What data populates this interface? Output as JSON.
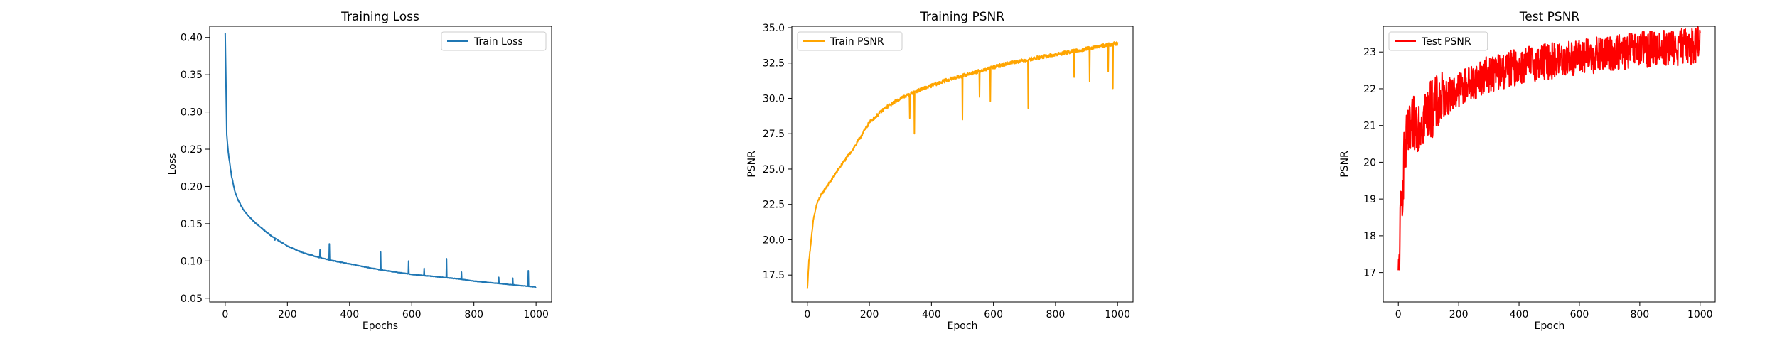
{
  "chart_data": [
    {
      "type": "line",
      "title": "Training Loss",
      "xlabel": "Epochs",
      "ylabel": "Loss",
      "xlim": [
        -50,
        1050
      ],
      "ylim": [
        0.045,
        0.415
      ],
      "xticks": [
        0,
        200,
        400,
        600,
        800,
        1000
      ],
      "yticks": [
        0.05,
        0.1,
        0.15,
        0.2,
        0.25,
        0.3,
        0.35,
        0.4
      ],
      "ytick_labels": [
        "0.05",
        "0.10",
        "0.15",
        "0.20",
        "0.25",
        "0.30",
        "0.35",
        "0.40"
      ],
      "grid": false,
      "legend_position": "top-right",
      "series": [
        {
          "name": "Train Loss",
          "color": "#1f77b4",
          "x": [
            0,
            5,
            10,
            20,
            30,
            40,
            50,
            60,
            80,
            100,
            120,
            150,
            200,
            250,
            300,
            350,
            400,
            450,
            500,
            550,
            600,
            650,
            700,
            750,
            800,
            850,
            900,
            950,
            1000
          ],
          "y": [
            0.405,
            0.27,
            0.245,
            0.215,
            0.195,
            0.183,
            0.175,
            0.168,
            0.158,
            0.15,
            0.143,
            0.133,
            0.12,
            0.111,
            0.105,
            0.1,
            0.096,
            0.092,
            0.088,
            0.085,
            0.082,
            0.08,
            0.078,
            0.076,
            0.073,
            0.071,
            0.069,
            0.067,
            0.065
          ],
          "spikes": [
            [
              160,
              0.128
            ],
            [
              305,
              0.115
            ],
            [
              335,
              0.123
            ],
            [
              500,
              0.112
            ],
            [
              590,
              0.1
            ],
            [
              640,
              0.09
            ],
            [
              712,
              0.103
            ],
            [
              760,
              0.085
            ],
            [
              880,
              0.078
            ],
            [
              925,
              0.077
            ],
            [
              975,
              0.087
            ]
          ]
        }
      ]
    },
    {
      "type": "line",
      "title": "Training PSNR",
      "xlabel": "Epoch",
      "ylabel": "PSNR",
      "xlim": [
        -50,
        1050
      ],
      "ylim": [
        15.6,
        35.1
      ],
      "xticks": [
        0,
        200,
        400,
        600,
        800,
        1000
      ],
      "yticks": [
        17.5,
        20.0,
        22.5,
        25.0,
        27.5,
        30.0,
        32.5,
        35.0
      ],
      "ytick_labels": [
        "17.5",
        "20.0",
        "22.5",
        "25.0",
        "27.5",
        "30.0",
        "32.5",
        "35.0"
      ],
      "grid": false,
      "legend_position": "top-left",
      "series": [
        {
          "name": "Train PSNR",
          "color": "#ffa500",
          "x": [
            0,
            5,
            10,
            20,
            30,
            40,
            60,
            80,
            100,
            150,
            200,
            250,
            300,
            350,
            400,
            450,
            500,
            550,
            600,
            650,
            700,
            750,
            800,
            850,
            900,
            950,
            1000
          ],
          "y": [
            16.5,
            18.5,
            19.5,
            21.5,
            22.5,
            23.0,
            23.7,
            24.3,
            25.0,
            26.5,
            28.3,
            29.3,
            30.0,
            30.5,
            30.9,
            31.3,
            31.6,
            31.9,
            32.2,
            32.5,
            32.7,
            32.9,
            33.1,
            33.3,
            33.5,
            33.7,
            33.9
          ],
          "spikes": [
            [
              330,
              28.6
            ],
            [
              345,
              27.5
            ],
            [
              500,
              28.5
            ],
            [
              555,
              30.1
            ],
            [
              590,
              29.8
            ],
            [
              712,
              29.3
            ],
            [
              860,
              31.5
            ],
            [
              910,
              31.2
            ],
            [
              970,
              31.9
            ],
            [
              985,
              30.7
            ]
          ]
        }
      ]
    },
    {
      "type": "line",
      "title": "Test PSNR",
      "xlabel": "Epoch",
      "ylabel": "PSNR",
      "xlim": [
        -50,
        1050
      ],
      "ylim": [
        16.2,
        23.7
      ],
      "xticks": [
        0,
        200,
        400,
        600,
        800,
        1000
      ],
      "yticks": [
        17,
        18,
        19,
        20,
        21,
        22,
        23
      ],
      "ytick_labels": [
        "17",
        "18",
        "19",
        "20",
        "21",
        "22",
        "23"
      ],
      "grid": false,
      "legend_position": "top-left",
      "series": [
        {
          "name": "Test PSNR",
          "color": "#ff0000",
          "x": [
            0,
            5,
            10,
            20,
            30,
            50,
            80,
            100,
            150,
            200,
            250,
            300,
            350,
            400,
            450,
            500,
            550,
            600,
            650,
            700,
            750,
            800,
            850,
            900,
            950,
            1000
          ],
          "y": [
            16.6,
            18.0,
            18.8,
            20.2,
            20.6,
            21.0,
            21.2,
            21.4,
            21.7,
            22.0,
            22.2,
            22.4,
            22.5,
            22.6,
            22.7,
            22.75,
            22.8,
            22.85,
            22.9,
            22.95,
            23.0,
            23.05,
            23.1,
            23.1,
            23.15,
            23.2
          ],
          "noise": 0.5
        }
      ]
    }
  ]
}
